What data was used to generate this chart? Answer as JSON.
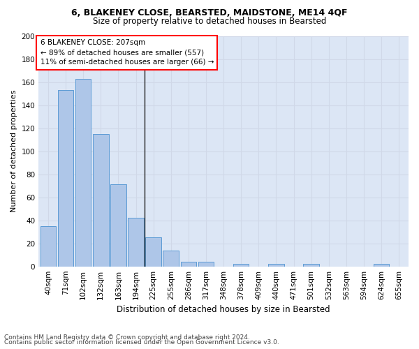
{
  "title": "6, BLAKENEY CLOSE, BEARSTED, MAIDSTONE, ME14 4QF",
  "subtitle": "Size of property relative to detached houses in Bearsted",
  "xlabel": "Distribution of detached houses by size in Bearsted",
  "ylabel": "Number of detached properties",
  "footer_line1": "Contains HM Land Registry data © Crown copyright and database right 2024.",
  "footer_line2": "Contains public sector information licensed under the Open Government Licence v3.0.",
  "annotation_line1": "6 BLAKENEY CLOSE: 207sqm",
  "annotation_line2": "← 89% of detached houses are smaller (557)",
  "annotation_line3": "11% of semi-detached houses are larger (66) →",
  "bar_labels": [
    "40sqm",
    "71sqm",
    "102sqm",
    "132sqm",
    "163sqm",
    "194sqm",
    "225sqm",
    "255sqm",
    "286sqm",
    "317sqm",
    "348sqm",
    "378sqm",
    "409sqm",
    "440sqm",
    "471sqm",
    "501sqm",
    "532sqm",
    "563sqm",
    "594sqm",
    "624sqm",
    "655sqm"
  ],
  "bar_values": [
    35,
    153,
    163,
    115,
    71,
    42,
    25,
    14,
    4,
    4,
    0,
    2,
    0,
    2,
    0,
    2,
    0,
    0,
    0,
    2,
    0
  ],
  "bar_color": "#aec6e8",
  "bar_edge_color": "#5b9bd5",
  "grid_color": "#d0d8e8",
  "plot_bg_color": "#dce6f5",
  "fig_bg_color": "#ffffff",
  "vline_x": 5.5,
  "ylim": [
    0,
    200
  ],
  "yticks": [
    0,
    20,
    40,
    60,
    80,
    100,
    120,
    140,
    160,
    180,
    200
  ],
  "title_fontsize": 9,
  "subtitle_fontsize": 8.5,
  "ylabel_fontsize": 8,
  "xlabel_fontsize": 8.5,
  "tick_fontsize": 7.5,
  "footer_fontsize": 6.5,
  "ann_fontsize": 7.5
}
